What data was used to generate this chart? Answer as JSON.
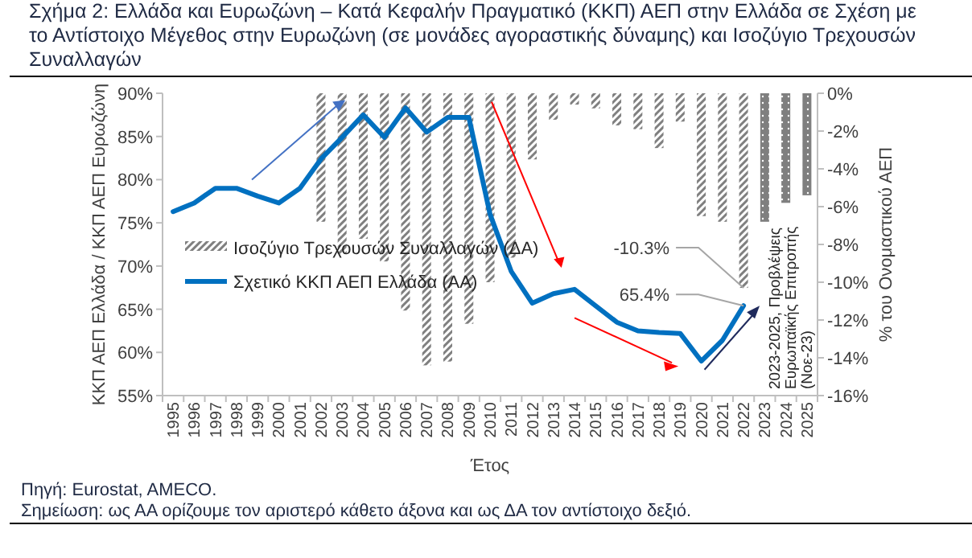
{
  "chart_data": {
    "type": "line",
    "title": "Σχήμα 2: Ελλάδα και Ευρωζώνη – Κατά Κεφαλήν Πραγματικό (ΚΚΠ) ΑΕΠ στην Ελλάδα σε Σχέση με το Αντίστοιχο Μέγεθος στην Ευρωζώνη (σε μονάδες αγοραστικής δύναμης) και Ισοζύγιο Τρεχουσών Συναλλαγών",
    "xlabel": "Έτος",
    "ylabel": "ΚΚΠ ΑΕΠ Ελλάδα / ΚΚΠ ΑΕΠ Ευρωζώνη",
    "y2label": "% του Ονομαστικού ΑΕΠ",
    "categories": [
      "1995",
      "1996",
      "1997",
      "1998",
      "1999",
      "2000",
      "2001",
      "2002",
      "2003",
      "2004",
      "2005",
      "2006",
      "2007",
      "2008",
      "2009",
      "2010",
      "2011",
      "2012",
      "2013",
      "2014",
      "2015",
      "2016",
      "2017",
      "2018",
      "2019",
      "2020",
      "2021",
      "2022",
      "2023",
      "2024",
      "2025"
    ],
    "series": [
      {
        "name": "Ισοζύγιο Τρεχουσών Συναλλαγών (ΔΑ)",
        "type": "bar",
        "axis": "y2",
        "color": "#808080",
        "values": [
          null,
          null,
          null,
          null,
          null,
          null,
          null,
          -6.8,
          -8.5,
          -7.7,
          -8.9,
          -11.5,
          -14.4,
          -14.2,
          -12.2,
          -10.0,
          -8.7,
          -3.5,
          -1.4,
          -0.6,
          -0.8,
          -1.7,
          -1.9,
          -2.9,
          -1.5,
          -6.5,
          -6.8,
          -10.3,
          null,
          null,
          null
        ],
        "value_labels": [
          null,
          null,
          null,
          null,
          null,
          null,
          null,
          null,
          null,
          null,
          null,
          null,
          null,
          null,
          null,
          null,
          null,
          null,
          null,
          null,
          null,
          null,
          null,
          null,
          null,
          null,
          null,
          "-10.3%",
          null,
          null,
          null
        ]
      },
      {
        "type": "bar",
        "axis": "y2",
        "color": "#7f7f7f",
        "values": [
          null,
          null,
          null,
          null,
          null,
          null,
          null,
          null,
          null,
          null,
          null,
          null,
          null,
          null,
          null,
          null,
          null,
          null,
          null,
          null,
          null,
          null,
          null,
          null,
          null,
          null,
          null,
          null,
          -6.8,
          -5.8,
          -5.4
        ]
      },
      {
        "name": "Σχετικό ΚΚΠ ΑΕΠ Ελλάδα (ΑΑ)",
        "color": "#0070c0",
        "values": [
          76.3,
          77.3,
          79.0,
          79.0,
          78.1,
          77.3,
          79.0,
          82.4,
          84.9,
          87.5,
          84.9,
          88.3,
          85.5,
          87.2,
          87.2,
          76.0,
          69.4,
          65.7,
          66.8,
          67.3,
          65.4,
          63.5,
          62.5,
          62.3,
          62.2,
          59.0,
          61.4,
          65.4,
          null,
          null,
          null
        ],
        "value_labels": [
          null,
          null,
          null,
          null,
          null,
          null,
          null,
          null,
          null,
          null,
          null,
          null,
          null,
          null,
          null,
          null,
          null,
          null,
          null,
          null,
          null,
          null,
          null,
          null,
          null,
          null,
          null,
          "65.4%",
          null,
          null,
          null
        ]
      }
    ],
    "ylim": [
      55,
      90
    ],
    "yticks": [
      {
        "value": 55,
        "label": "55%"
      },
      {
        "value": 60,
        "label": "60%"
      },
      {
        "value": 65,
        "label": "65%"
      },
      {
        "value": 70,
        "label": "70%"
      },
      {
        "value": 75,
        "label": "75%"
      },
      {
        "value": 80,
        "label": "80%"
      },
      {
        "value": 85,
        "label": "85%"
      },
      {
        "value": 90,
        "label": "90%"
      }
    ],
    "y2lim": [
      -16,
      0
    ],
    "y2ticks": [
      {
        "value": -16,
        "label": "-16%"
      },
      {
        "value": -14,
        "label": "-14%"
      },
      {
        "value": -12,
        "label": "-12%"
      },
      {
        "value": -10,
        "label": "-10%"
      },
      {
        "value": -8,
        "label": "-8%"
      },
      {
        "value": -6,
        "label": "-6%"
      },
      {
        "value": -4,
        "label": "-4%"
      },
      {
        "value": -2,
        "label": "-2%"
      },
      {
        "value": 0,
        "label": "0%"
      }
    ],
    "legend": "bottom left",
    "annotations": [
      "2023-2025, Προβλέψεις Ευρωπαϊκής Επιτροπής (Νοε-23)",
      "Πηγή: Eurostat, AMECO.",
      "Σημείωση: ως ΑΑ ορίζουμε τον αριστερό κάθετο άξονα και ως ΔΑ τον αντίστοιχο δεξιό."
    ]
  }
}
